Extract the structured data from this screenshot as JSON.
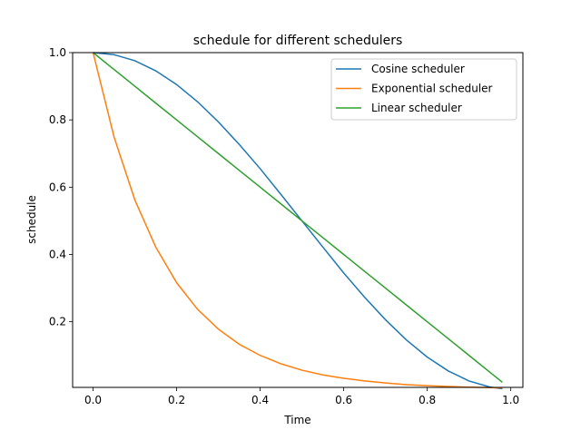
{
  "chart_data": {
    "type": "line",
    "title": "schedule for different schedulers",
    "xlabel": "Time",
    "ylabel": "schedule",
    "xlim": [
      -0.049,
      1.029
    ],
    "ylim": [
      0.0049,
      1.0
    ],
    "grid": false,
    "legend_position": "top-right",
    "x_ticks": [
      0.0,
      0.2,
      0.4,
      0.6,
      0.8,
      1.0
    ],
    "x_tick_labels": [
      "0.0",
      "0.2",
      "0.4",
      "0.6",
      "0.8",
      "1.0"
    ],
    "y_ticks": [
      0.2,
      0.4,
      0.6,
      0.8,
      1.0
    ],
    "y_tick_labels": [
      "0.2",
      "0.4",
      "0.6",
      "0.8",
      "1.0"
    ],
    "x": [
      0.0,
      0.05,
      0.1,
      0.15,
      0.2,
      0.25,
      0.3,
      0.35,
      0.4,
      0.45,
      0.5,
      0.55,
      0.6,
      0.65,
      0.7,
      0.75,
      0.8,
      0.85,
      0.9,
      0.95,
      0.98
    ],
    "series": [
      {
        "name": "Cosine scheduler",
        "color": "#1f77b4",
        "values": [
          1.0,
          0.994,
          0.976,
          0.946,
          0.905,
          0.854,
          0.794,
          0.727,
          0.655,
          0.578,
          0.5,
          0.422,
          0.345,
          0.273,
          0.206,
          0.146,
          0.095,
          0.054,
          0.024,
          0.006,
          0.001
        ]
      },
      {
        "name": "Exponential scheduler",
        "color": "#ff7f0e",
        "values": [
          1.0,
          0.75,
          0.562,
          0.422,
          0.316,
          0.237,
          0.178,
          0.133,
          0.1,
          0.075,
          0.056,
          0.042,
          0.032,
          0.024,
          0.018,
          0.013,
          0.01,
          0.0075,
          0.0056,
          0.0042,
          0.0035
        ]
      },
      {
        "name": "Linear scheduler",
        "color": "#2ca02c",
        "values": [
          1.0,
          0.95,
          0.9,
          0.85,
          0.8,
          0.75,
          0.7,
          0.65,
          0.6,
          0.55,
          0.5,
          0.45,
          0.4,
          0.35,
          0.3,
          0.25,
          0.2,
          0.15,
          0.1,
          0.05,
          0.02
        ]
      }
    ]
  }
}
